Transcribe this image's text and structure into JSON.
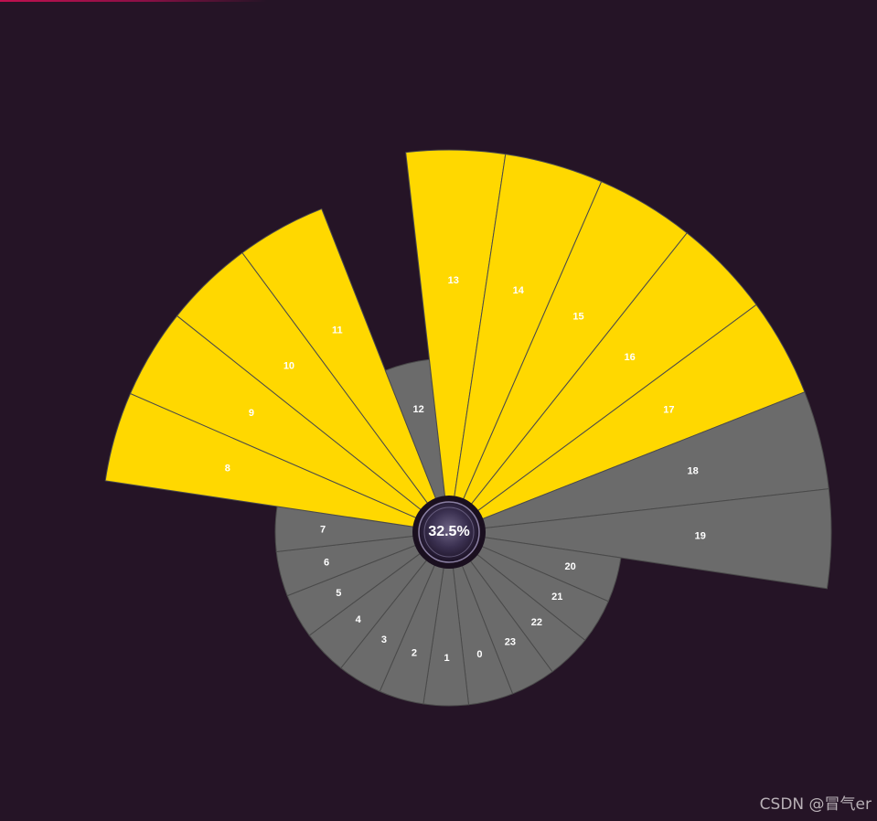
{
  "chart_data": {
    "type": "polar-bar",
    "center_label": "32.5%",
    "categories": [
      "0",
      "1",
      "2",
      "3",
      "4",
      "5",
      "6",
      "7",
      "8",
      "9",
      "10",
      "11",
      "12",
      "13",
      "14",
      "15",
      "16",
      "17",
      "18",
      "19",
      "20",
      "21",
      "22",
      "23"
    ],
    "values": [
      100,
      100,
      100,
      100,
      100,
      100,
      100,
      100,
      200,
      200,
      200,
      200,
      100,
      220,
      220,
      220,
      220,
      220,
      220,
      220,
      100,
      100,
      100,
      100
    ],
    "highlighted": [
      false,
      false,
      false,
      false,
      false,
      false,
      false,
      false,
      true,
      true,
      true,
      true,
      false,
      true,
      true,
      true,
      true,
      true,
      false,
      false,
      false,
      false,
      false,
      false
    ],
    "colors": {
      "highlight": "#ffd800",
      "normal": "#6b6b6b",
      "segment_stroke": "#4a4a4a",
      "background": "#251426"
    }
  },
  "watermark": "CSDN @冒气er"
}
